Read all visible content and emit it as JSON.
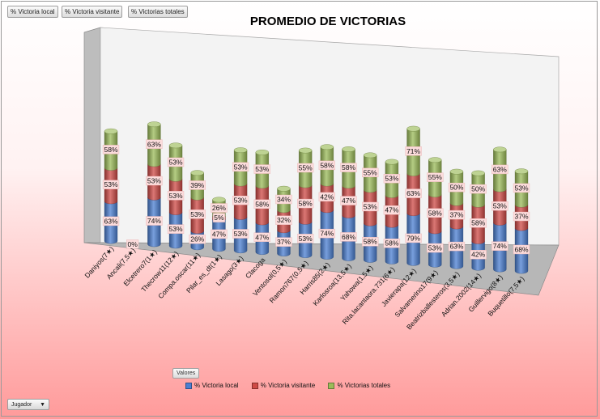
{
  "field_buttons": [
    {
      "label": "% Victoria local"
    },
    {
      "label": "% Victoria visitante"
    },
    {
      "label": "% Victorias totales"
    }
  ],
  "values_button": "Valores",
  "row_field_button": {
    "label": "Jugador"
  },
  "chart_data": {
    "type": "bar",
    "stacked": true,
    "three_d": true,
    "title": "PROMEDIO DE VICTORIAS",
    "categories": [
      "Daniyos(7★)",
      "Ancali(7,5★)",
      "Elcetrero7(1★)",
      "Thecrow11(12★)",
      "Compa.oscar(11★)",
      "Pilar_es_dt(1★)",
      "Lasago(3★)",
      "Clacoga",
      "Ventosol(0,5★)",
      "Ramon767(0,5★)",
      "Harris85(2★)",
      "Karlosroa(13,5★)",
      "Yahowa(1,5★)",
      "Rita.lacantaora.731(6★)",
      "Javierapa(12★)",
      "Salvamerino17(9★)",
      "Beatrizballesteros(3,5★)",
      "Adrian.2002(14★)",
      "Guillervigo(8★)",
      "Buquetillo(7,5★)"
    ],
    "series": [
      {
        "name": "% Victoria local",
        "color": "#4b7fd2",
        "values": [
          63,
          0,
          74,
          53,
          26,
          47,
          53,
          47,
          37,
          53,
          74,
          68,
          58,
          58,
          79,
          53,
          63,
          42,
          74,
          68
        ],
        "labels": [
          "63%",
          "0%",
          "74%",
          "53%",
          "26%",
          "47%",
          "53%",
          "47%",
          "37%",
          "53%",
          "74%",
          "68%",
          "58%",
          "58%",
          "79%",
          "53%",
          "63%",
          "42%",
          "74%",
          "68%"
        ]
      },
      {
        "name": "% Victoria visitante",
        "color": "#cf4a46",
        "values": [
          53,
          0,
          53,
          53,
          53,
          5,
          53,
          58,
          32,
          58,
          42,
          47,
          53,
          47,
          63,
          58,
          37,
          58,
          53,
          37
        ],
        "labels": [
          "53%",
          "",
          "53%",
          "53%",
          "53%",
          "5%",
          "53%",
          "58%",
          "32%",
          "58%",
          "42%",
          "47%",
          "53%",
          "47%",
          "63%",
          "58%",
          "37%",
          "58%",
          "53%",
          "37%"
        ]
      },
      {
        "name": "% Victorias totales",
        "color": "#9bbb59",
        "values": [
          58,
          0,
          63,
          53,
          39,
          26,
          53,
          53,
          34,
          55,
          58,
          58,
          55,
          53,
          71,
          55,
          50,
          50,
          63,
          53
        ],
        "labels": [
          "58%",
          "",
          "63%",
          "53%",
          "39%",
          "26%",
          "53%",
          "53%",
          "34%",
          "55%",
          "58%",
          "58%",
          "55%",
          "53%",
          "71%",
          "55%",
          "50%",
          "50%",
          "63%",
          "53%"
        ]
      }
    ],
    "legend_position": "bottom",
    "grid": false
  }
}
